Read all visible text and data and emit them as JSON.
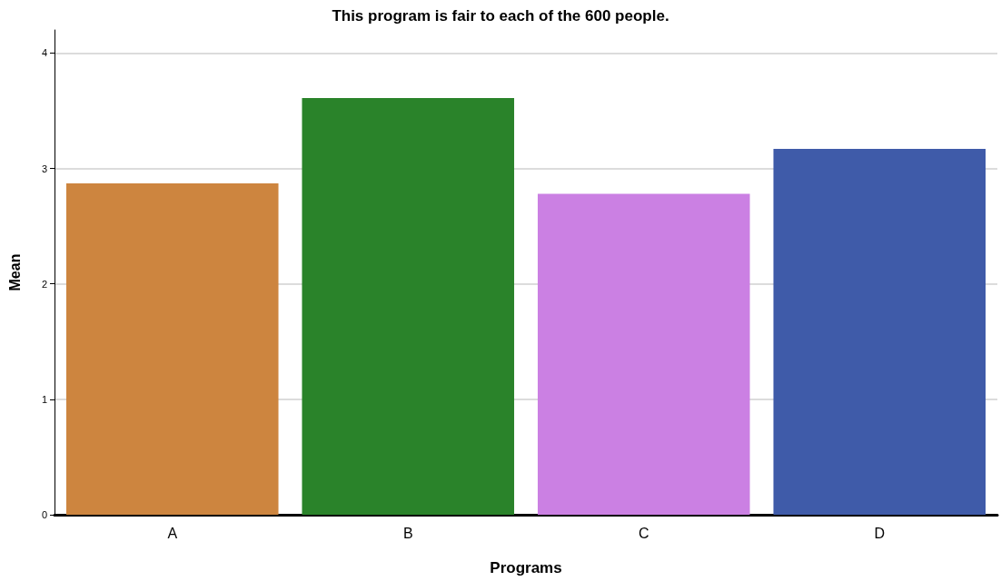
{
  "chart_data": {
    "type": "bar",
    "title": "This program is fair to each of the 600 people.",
    "xlabel": "Programs",
    "ylabel": "Mean",
    "categories": [
      "A",
      "B",
      "C",
      "D"
    ],
    "values": [
      2.87,
      3.61,
      2.78,
      3.17
    ],
    "colors": [
      "#cd853f",
      "#2a832a",
      "#cb80e3",
      "#3f5ba9"
    ],
    "ylim": [
      0,
      4.2
    ],
    "yticks": [
      0,
      1,
      2,
      3,
      4
    ],
    "grid": "y"
  }
}
